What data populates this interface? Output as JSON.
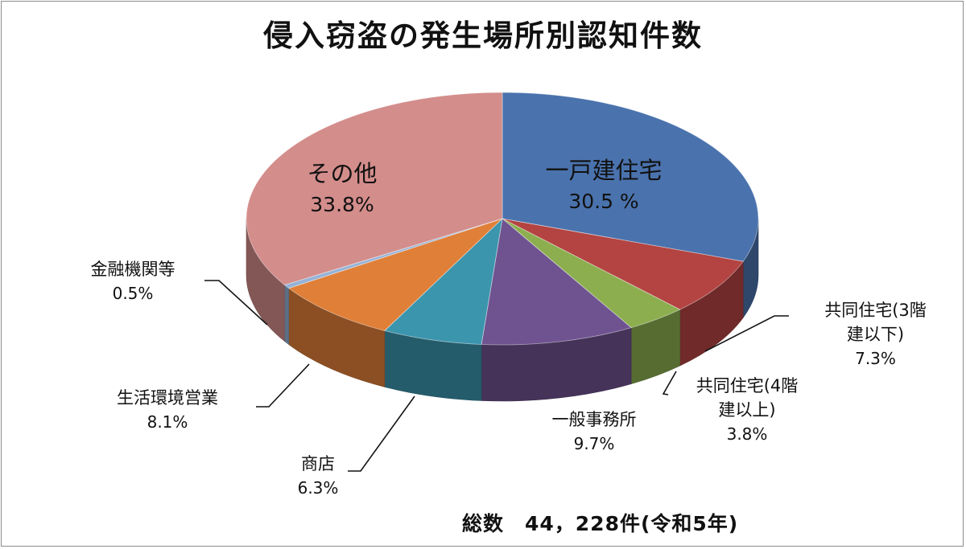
{
  "chart_data": {
    "type": "pie",
    "title": "侵入窃盗の発生場所別認知件数",
    "slices": [
      {
        "label": "一戸建住宅",
        "value": 30.5,
        "value_text": "30.5 %",
        "color": "#4a72ad"
      },
      {
        "label": "共同住宅(3階建以下)",
        "label_lines": [
          "共同住宅(3階",
          "建以下)"
        ],
        "value": 7.3,
        "value_text": "7.3%",
        "color": "#b34442"
      },
      {
        "label": "共同住宅(4階建以上)",
        "label_lines": [
          "共同住宅(4階",
          "建以上)"
        ],
        "value": 3.8,
        "value_text": "3.8%",
        "color": "#8cae4f"
      },
      {
        "label": "一般事務所",
        "value": 9.7,
        "value_text": "9.7%",
        "color": "#6f5390"
      },
      {
        "label": "商店",
        "value": 6.3,
        "value_text": "6.3%",
        "color": "#3b95ad"
      },
      {
        "label": "生活環境営業",
        "value": 8.1,
        "value_text": "8.1%",
        "color": "#e07f38"
      },
      {
        "label": "金融機関等",
        "value": 0.5,
        "value_text": "0.5%",
        "color": "#95b3d7"
      },
      {
        "label": "その他",
        "value": 33.8,
        "value_text": "33.8%",
        "color": "#d38d8b"
      }
    ],
    "note": "総数　44，228件(令和5年)"
  }
}
